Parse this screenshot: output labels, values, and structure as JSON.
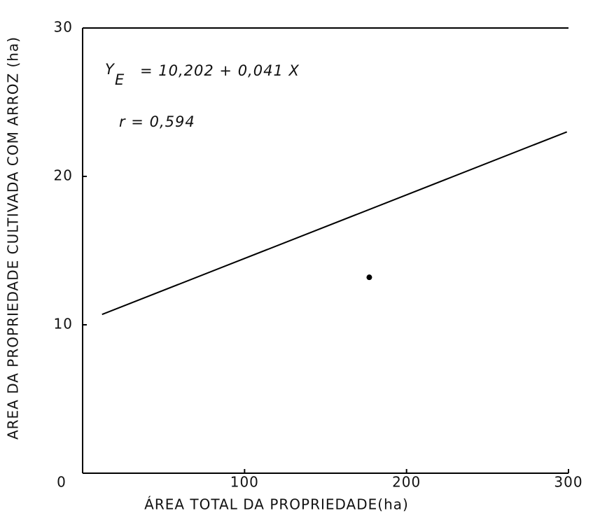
{
  "chart_data": {
    "type": "line",
    "x_label": "ÁREA TOTAL DA PROPRIEDADE(ha)",
    "y_label": "AREA DA PROPRIEDADE CULTIVADA COM ARROZ (ha)",
    "equation": {
      "y": "Y",
      "subscript": "E",
      "rest": "= 10,202 + 0,041 X"
    },
    "correlation": "r =  0,594",
    "xlim": [
      0,
      300
    ],
    "xticks": [
      100,
      200,
      300
    ],
    "ylim": [
      0,
      30
    ],
    "yticks": [
      0,
      10,
      20,
      30
    ],
    "series": [
      {
        "type": "line",
        "color": "#000000",
        "x": [
          12,
          299
        ],
        "values": [
          10.7,
          23.0
        ]
      },
      {
        "type": "scatter",
        "color": "#000000",
        "x": [
          177
        ],
        "values": [
          13.2
        ]
      }
    ]
  }
}
